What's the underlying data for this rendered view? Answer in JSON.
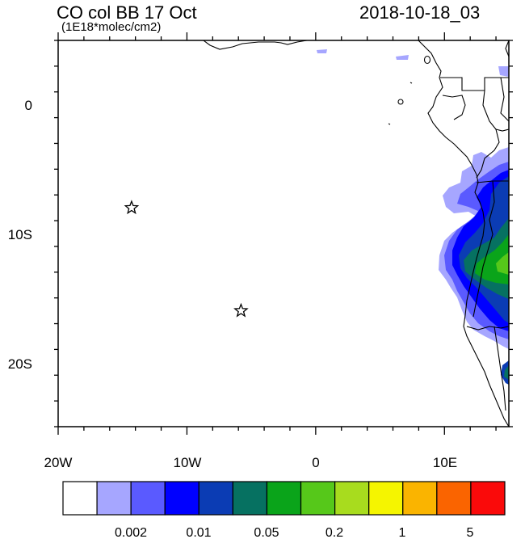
{
  "title": "CO col BB 17 Oct",
  "subtitle": "(1E18*molec/cm2)",
  "timestamp": "2018-10-18_03",
  "lat_labels": [
    "0",
    "10S",
    "20S"
  ],
  "lon_labels": [
    "20W",
    "10W",
    "0",
    "10E"
  ],
  "map_extent": {
    "lon": [
      -20,
      15
    ],
    "lat": [
      -25,
      5
    ]
  },
  "markers": [
    {
      "name": "star-1",
      "lon": -14.3,
      "lat": -8.0
    },
    {
      "name": "star-2",
      "lon": -5.8,
      "lat": -16.0
    }
  ],
  "colorbar": {
    "colors": [
      "#ffffff",
      "#a6a6ff",
      "#5a5aff",
      "#0000ff",
      "#0b3cb4",
      "#067161",
      "#0aa41a",
      "#56c81a",
      "#a8dc1e",
      "#f5f500",
      "#fab400",
      "#fa6400",
      "#fa0a0a"
    ],
    "tick_labels": [
      "0.002",
      "0.01",
      "0.05",
      "0.2",
      "1",
      "5"
    ]
  }
}
